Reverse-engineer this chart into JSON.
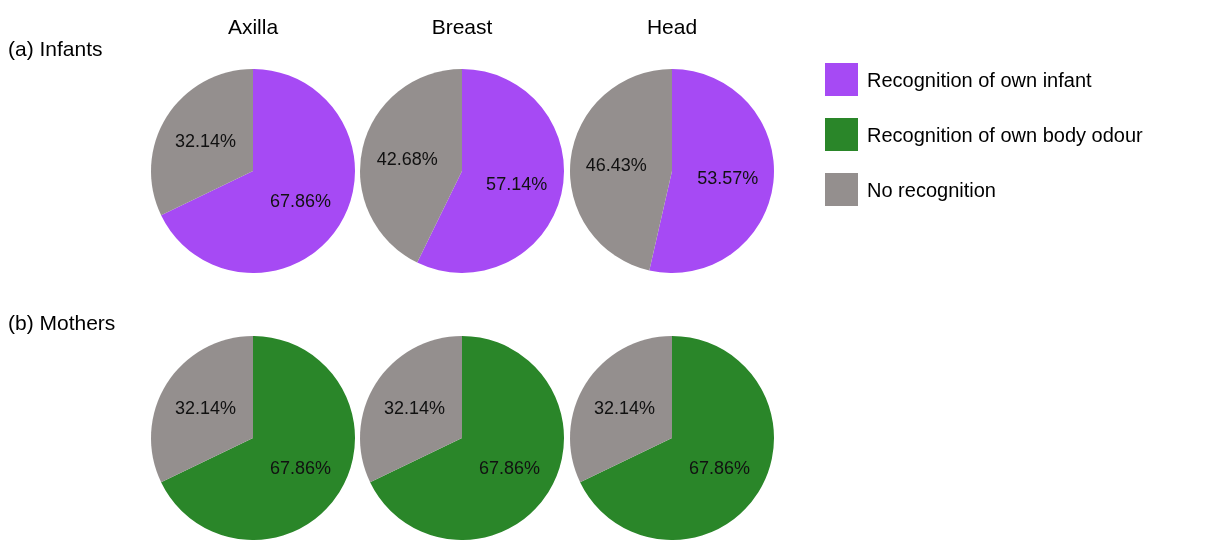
{
  "chart_data": [
    {
      "type": "pie",
      "title": "Axilla",
      "annotations": [
        "(a) Infants"
      ],
      "categories": [
        "Recognition of own infant",
        "Recognition of own body odour",
        "No recognition"
      ],
      "values": [
        67.86,
        null,
        32.14
      ],
      "value_labels": [
        "67.86%",
        null,
        "32.14%"
      ],
      "colors": [
        "#a64af4",
        "#2a8629",
        "#948f8e"
      ],
      "legend": "right"
    },
    {
      "type": "pie",
      "title": "Breast",
      "categories": [
        null,
        null
      ],
      "values": [
        57.14,
        42.68
      ],
      "value_labels": [
        "57.14%",
        "42.68%"
      ],
      "colors": [
        "#a64af4",
        "#948f8e"
      ]
    },
    {
      "type": "pie",
      "title": "Head",
      "categories": [
        null,
        null
      ],
      "values": [
        53.57,
        46.43
      ],
      "value_labels": [
        "53.57%",
        "46.43%"
      ],
      "colors": [
        "#a64af4",
        "#948f8e"
      ]
    },
    {
      "type": "pie",
      "annotations": [
        "(b) Mothers"
      ],
      "categories": [
        null,
        null
      ],
      "values": [
        67.86,
        32.14
      ],
      "value_labels": [
        "67.86%",
        "32.14%"
      ],
      "colors": [
        "#2a8629",
        "#948f8e"
      ]
    },
    {
      "type": "pie",
      "categories": [
        null,
        null
      ],
      "values": [
        67.86,
        32.14
      ],
      "value_labels": [
        "67.86%",
        "32.14%"
      ],
      "colors": [
        "#2a8629",
        "#948f8e"
      ]
    },
    {
      "type": "pie",
      "categories": [
        null,
        null
      ],
      "values": [
        67.86,
        32.14
      ],
      "value_labels": [
        "67.86%",
        "32.14%"
      ],
      "colors": [
        "#2a8629",
        "#948f8e"
      ]
    }
  ]
}
